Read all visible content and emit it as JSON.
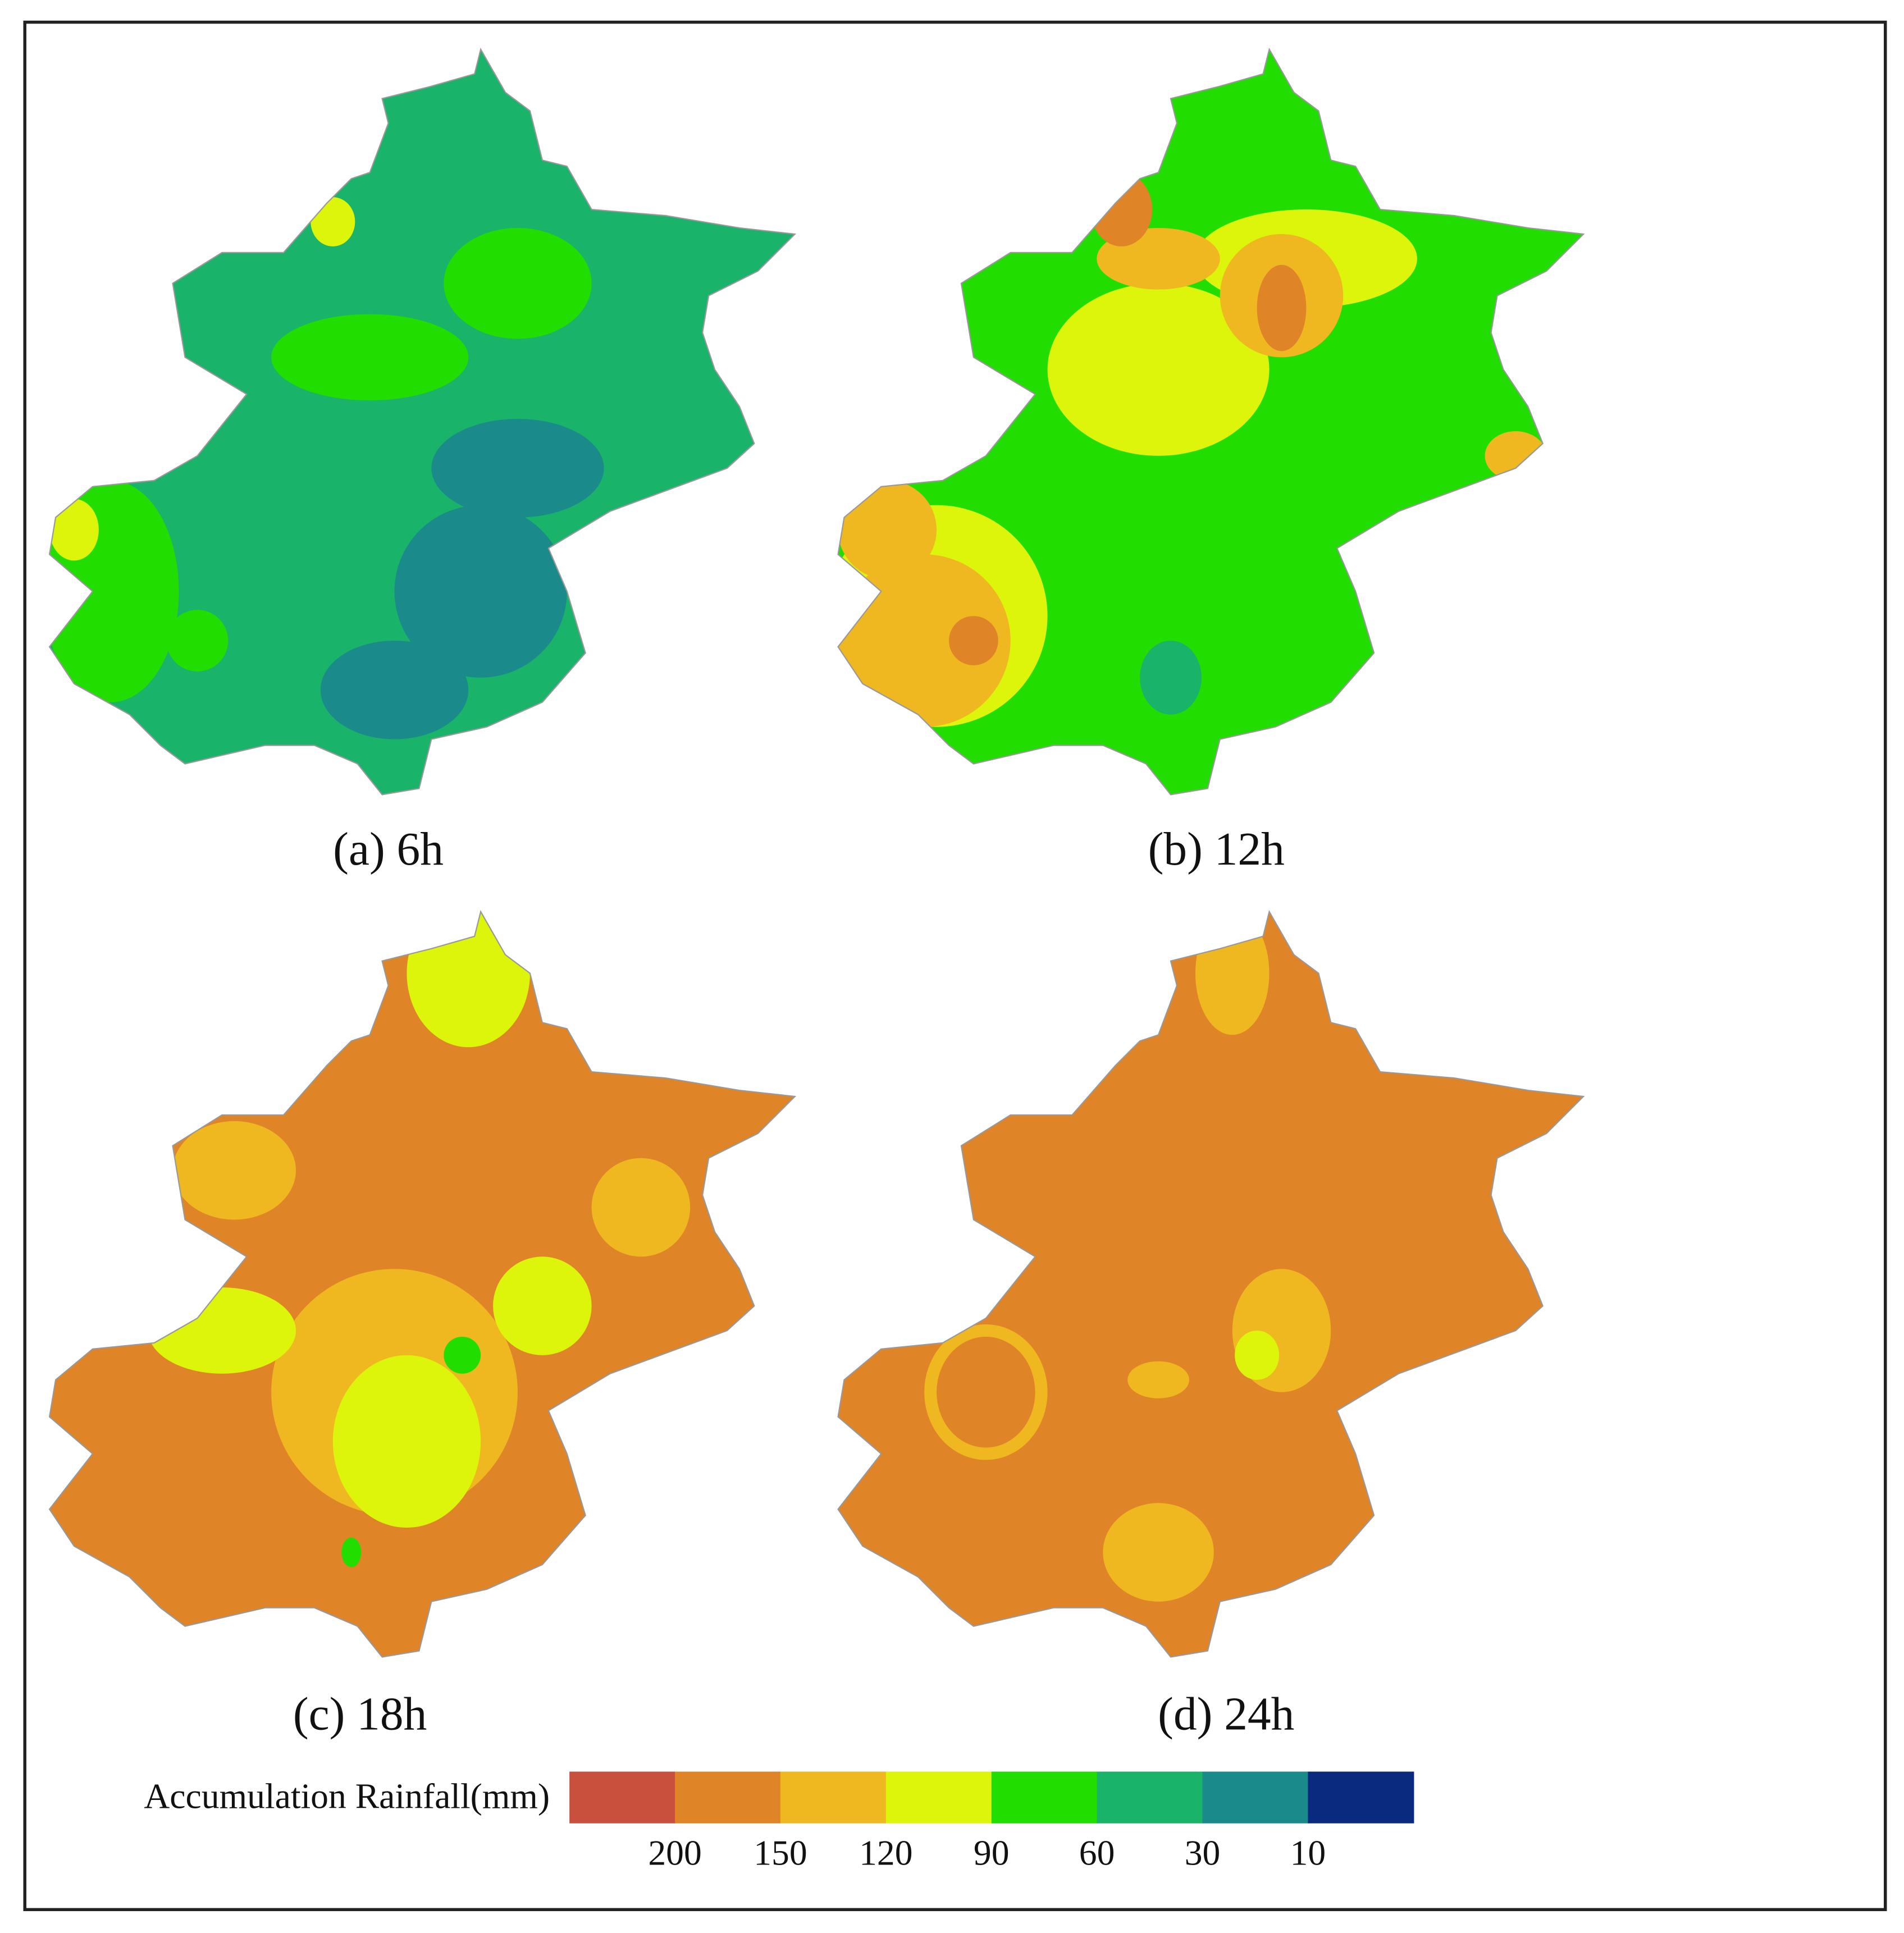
{
  "panels": [
    {
      "label": "(a) 6h"
    },
    {
      "label": "(b) 12h"
    },
    {
      "label": "(c) 18h"
    },
    {
      "label": "(d) 24h"
    }
  ],
  "legend": {
    "title": "Accumulation Rainfall(mm)",
    "colors": [
      "#c8503c",
      "#e08428",
      "#f0b820",
      "#dcf50a",
      "#22dd00",
      "#1ab36a",
      "#1a8a8a",
      "#0a2a80"
    ],
    "ticks": [
      200,
      150,
      120,
      90,
      60,
      30,
      10
    ]
  }
}
